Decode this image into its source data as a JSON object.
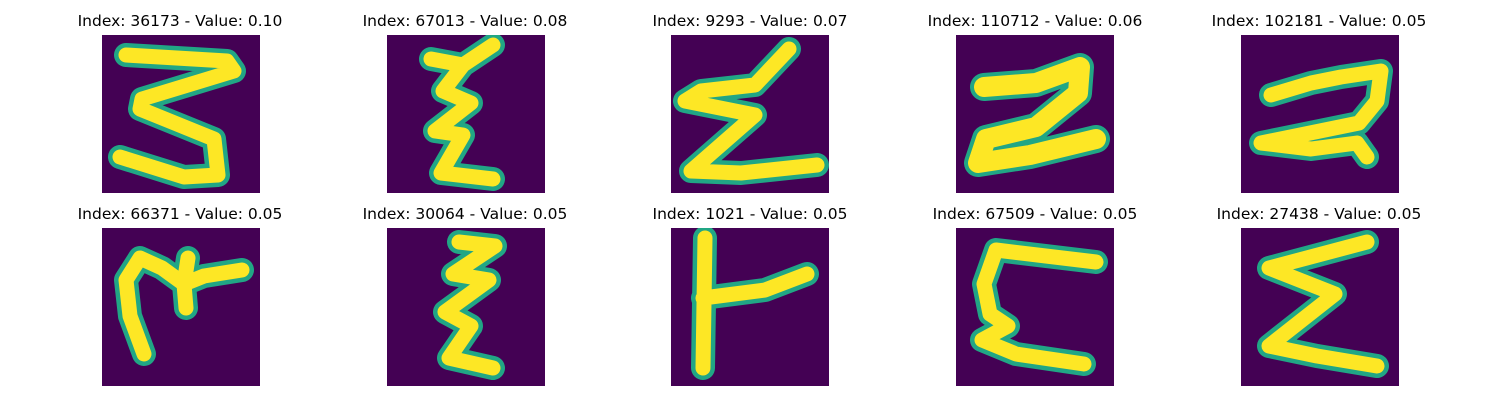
{
  "colors": {
    "background": "#440154",
    "stroke_edge": "#21a685",
    "stroke_core": "#fde725"
  },
  "panels": [
    {
      "title": "Index: 36173 - Value: 0.10",
      "glyph": "letter-z-icon"
    },
    {
      "title": "Index: 67013 - Value: 0.08",
      "glyph": "letter-z-icon"
    },
    {
      "title": "Index: 9293 - Value: 0.07",
      "glyph": "letter-z-icon"
    },
    {
      "title": "Index: 110712 - Value: 0.06",
      "glyph": "letter-z-icon"
    },
    {
      "title": "Index: 102181 - Value: 0.05",
      "glyph": "letter-z-icon"
    },
    {
      "title": "Index: 66371 - Value: 0.05",
      "glyph": "letter-m-icon"
    },
    {
      "title": "Index: 30064 - Value: 0.05",
      "glyph": "letter-z-icon"
    },
    {
      "title": "Index: 1021 - Value: 0.05",
      "glyph": "letter-f-icon"
    },
    {
      "title": "Index: 67509 - Value: 0.05",
      "glyph": "letter-e-icon"
    },
    {
      "title": "Index: 27438 - Value: 0.05",
      "glyph": "letter-z-icon"
    }
  ]
}
